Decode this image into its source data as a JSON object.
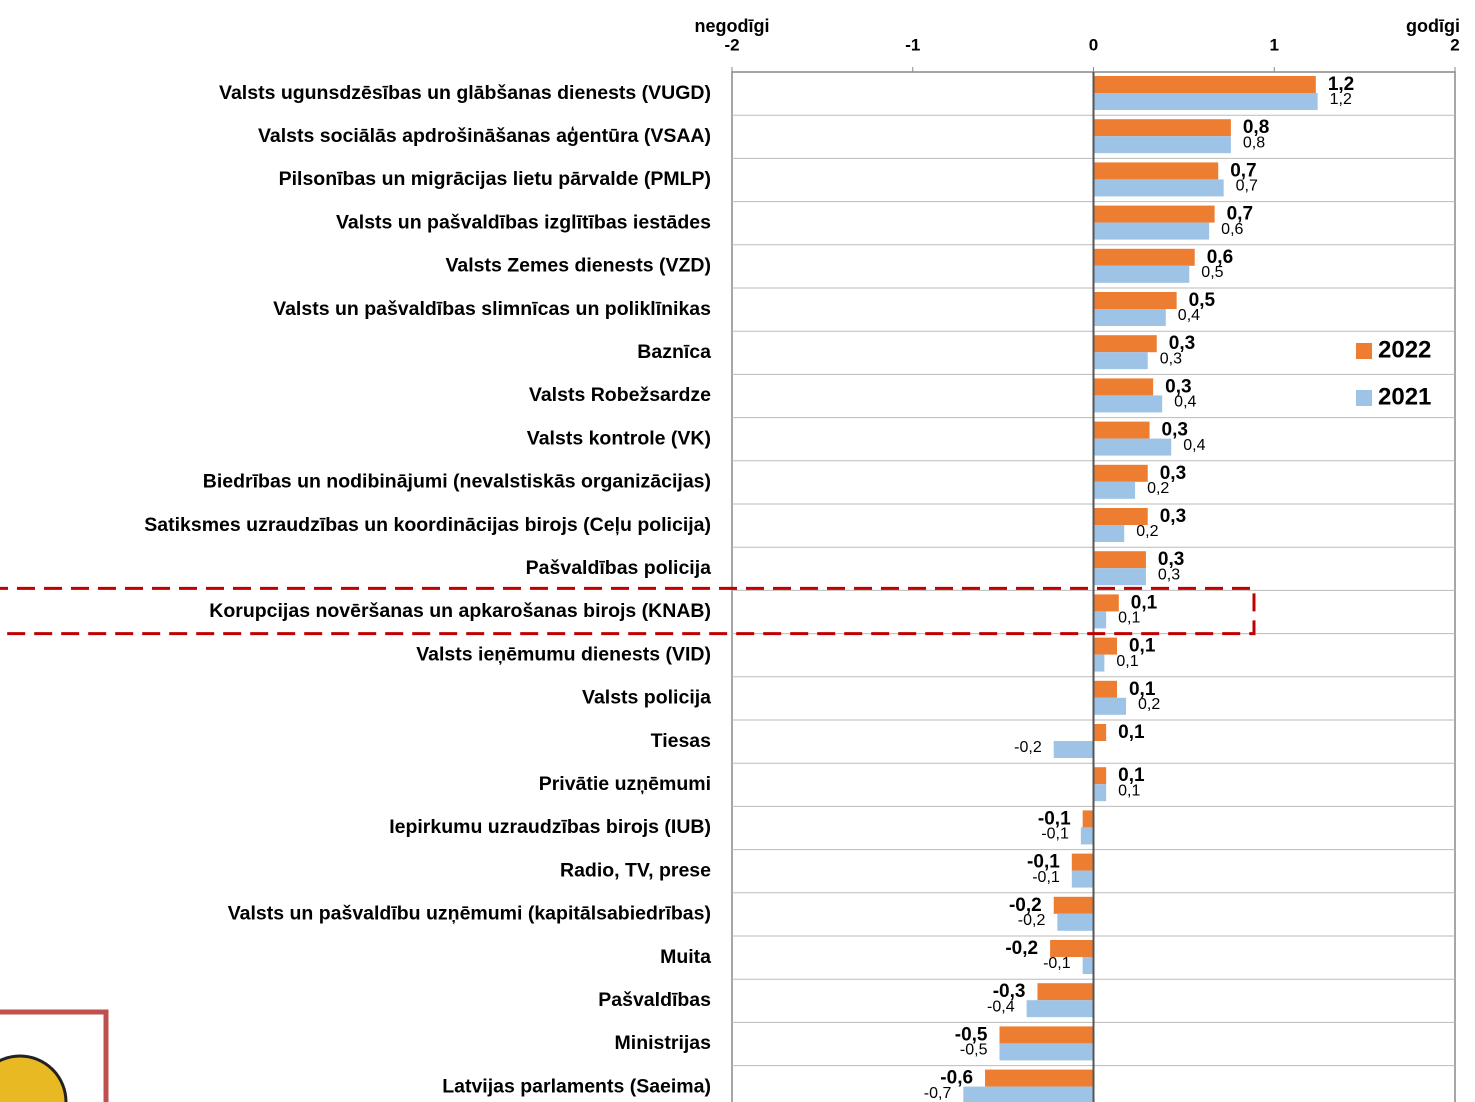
{
  "chart_data": {
    "type": "hbar",
    "xlabel_left": "negodīgi",
    "xlabel_right": "godīgi",
    "categories": [
      "Valsts ugunsdzēsības un glābšanas dienests (VUGD)",
      "Valsts sociālās apdrošināšanas aģentūra (VSAA)",
      "Pilsonības un migrācijas lietu pārvalde (PMLP)",
      "Valsts un pašvaldības izglītības iestādes",
      "Valsts Zemes dienests (VZD)",
      "Valsts un pašvaldības slimnīcas un poliklīnikas",
      "Baznīca",
      "Valsts Robežsardze",
      "Valsts kontrole (VK)",
      "Biedrības un nodibinājumi (nevalstiskās organizācijas)",
      "Satiksmes uzraudzības un koordinācijas birojs (Ceļu policija)",
      "Pašvaldības policija",
      "Korupcijas novēršanas un apkarošanas birojs (KNAB)",
      "Valsts ieņēmumu dienests (VID)",
      "Valsts policija",
      "Tiesas",
      "Privātie uzņēmumi",
      "Iepirkumu uzraudzības birojs (IUB)",
      "Radio, TV, prese",
      "Valsts un pašvaldību uzņēmumi (kapitālsabiedrības)",
      "Muita",
      "Pašvaldības",
      "Ministrijas",
      "Latvijas parlaments (Saeima)"
    ],
    "series": [
      {
        "name": "2022",
        "color": "#ed7d31",
        "values": [
          1.23,
          0.76,
          0.69,
          0.67,
          0.56,
          0.46,
          0.35,
          0.33,
          0.31,
          0.3,
          0.3,
          0.29,
          0.14,
          0.13,
          0.13,
          0.07,
          0.07,
          -0.06,
          -0.12,
          -0.22,
          -0.24,
          -0.31,
          -0.52,
          -0.6
        ],
        "value_labels": [
          "1,2",
          "0,8",
          "0,7",
          "0,7",
          "0,6",
          "0,5",
          "0,3",
          "0,3",
          "0,3",
          "0,3",
          "0,3",
          "0,3",
          "0,1",
          "0,1",
          "0,1",
          "0,1",
          "0,1",
          "-0,1",
          "-0,1",
          "-0,2",
          "-0,2",
          "-0,3",
          "-0,5",
          "-0,6"
        ]
      },
      {
        "name": "2021",
        "color": "#9dc3e6",
        "values": [
          1.24,
          0.76,
          0.72,
          0.64,
          0.53,
          0.4,
          0.3,
          0.38,
          0.43,
          0.23,
          0.17,
          0.29,
          0.07,
          0.06,
          0.18,
          -0.22,
          0.07,
          -0.07,
          -0.12,
          -0.2,
          -0.06,
          -0.37,
          -0.52,
          -0.72
        ],
        "value_labels": [
          "1,2",
          "0,8",
          "0,7",
          "0,6",
          "0,5",
          "0,4",
          "0,3",
          "0,4",
          "0,4",
          "0,2",
          "0,2",
          "0,3",
          "0,1",
          "0,1",
          "0,2",
          "-0,2",
          "0,1",
          "-0,1",
          "-0,1",
          "-0,2",
          "-0,1",
          "-0,4",
          "-0,5",
          "-0,7"
        ]
      }
    ],
    "xlim": [
      -2,
      2
    ],
    "xticks": [
      -2,
      -1,
      0,
      1,
      2
    ],
    "grid": false,
    "legend": "right"
  }
}
